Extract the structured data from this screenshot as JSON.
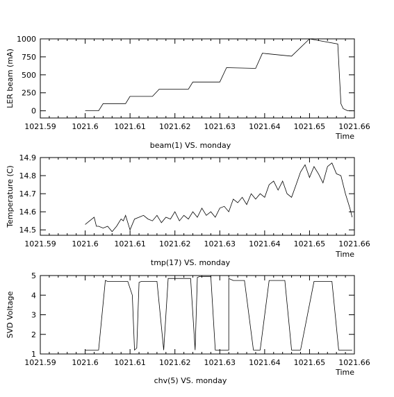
{
  "chart_data": [
    {
      "type": "line",
      "ylabel": "LER beam (mA)",
      "caption": "beam(1) VS. monday",
      "xlabel": "Time",
      "xlim": [
        1021.59,
        1021.66
      ],
      "ylim": [
        -100,
        1000
      ],
      "xticks": [
        "1021.59",
        "1021.6",
        "1021.61",
        "1021.62",
        "1021.63",
        "1021.64",
        "1021.65",
        "1021.66"
      ],
      "xtick_values": [
        1021.59,
        1021.6,
        1021.61,
        1021.62,
        1021.63,
        1021.64,
        1021.65,
        1021.66
      ],
      "yticks": [
        "0",
        "250",
        "500",
        "750",
        "1000"
      ],
      "ytick_values": [
        0,
        250,
        500,
        750,
        1000
      ],
      "x": [
        1021.6,
        1021.603,
        1021.604,
        1021.609,
        1021.61,
        1021.615,
        1021.6165,
        1021.623,
        1021.624,
        1021.63,
        1021.6315,
        1021.638,
        1021.6395,
        1021.646,
        1021.65,
        1021.6563,
        1021.657,
        1021.6575,
        1021.6585,
        1021.6595
      ],
      "series": [
        {
          "values": [
            0,
            0,
            100,
            100,
            200,
            200,
            300,
            300,
            400,
            400,
            600,
            590,
            800,
            760,
            1000,
            930,
            100,
            30,
            0,
            0
          ]
        }
      ]
    },
    {
      "type": "line",
      "ylabel": "Temperature (C)",
      "caption": "tmp(17) VS. monday",
      "xlabel": "Time",
      "xlim": [
        1021.59,
        1021.66
      ],
      "ylim": [
        14.47,
        14.9
      ],
      "xticks": [
        "1021.59",
        "1021.6",
        "1021.61",
        "1021.62",
        "1021.63",
        "1021.64",
        "1021.65",
        "1021.66"
      ],
      "xtick_values": [
        1021.59,
        1021.6,
        1021.61,
        1021.62,
        1021.63,
        1021.64,
        1021.65,
        1021.66
      ],
      "yticks": [
        "14.5",
        "14.6",
        "14.7",
        "14.8",
        "14.9"
      ],
      "ytick_values": [
        14.5,
        14.6,
        14.7,
        14.8,
        14.9
      ],
      "x": [
        1021.6,
        1021.601,
        1021.602,
        1021.6025,
        1021.603,
        1021.604,
        1021.605,
        1021.606,
        1021.607,
        1021.608,
        1021.6085,
        1021.609,
        1021.61,
        1021.611,
        1021.612,
        1021.613,
        1021.614,
        1021.615,
        1021.616,
        1021.617,
        1021.618,
        1021.619,
        1021.62,
        1021.621,
        1021.622,
        1021.623,
        1021.624,
        1021.625,
        1021.626,
        1021.627,
        1021.628,
        1021.629,
        1021.63,
        1021.631,
        1021.632,
        1021.633,
        1021.634,
        1021.635,
        1021.636,
        1021.637,
        1021.638,
        1021.639,
        1021.64,
        1021.641,
        1021.642,
        1021.643,
        1021.644,
        1021.645,
        1021.646,
        1021.647,
        1021.648,
        1021.649,
        1021.65,
        1021.651,
        1021.652,
        1021.653,
        1021.654,
        1021.655,
        1021.656,
        1021.657,
        1021.658,
        1021.659,
        1021.6595
      ],
      "series": [
        {
          "values": [
            14.53,
            14.55,
            14.57,
            14.52,
            14.52,
            14.51,
            14.52,
            14.49,
            14.52,
            14.56,
            14.55,
            14.58,
            14.5,
            14.56,
            14.57,
            14.58,
            14.56,
            14.55,
            14.58,
            14.54,
            14.57,
            14.56,
            14.6,
            14.55,
            14.58,
            14.56,
            14.6,
            14.57,
            14.62,
            14.58,
            14.6,
            14.57,
            14.62,
            14.63,
            14.6,
            14.67,
            14.65,
            14.68,
            14.64,
            14.7,
            14.67,
            14.7,
            14.68,
            14.75,
            14.77,
            14.72,
            14.77,
            14.7,
            14.68,
            14.75,
            14.82,
            14.86,
            14.79,
            14.85,
            14.81,
            14.76,
            14.85,
            14.87,
            14.81,
            14.8,
            14.7,
            14.62,
            14.57
          ]
        }
      ]
    },
    {
      "type": "line",
      "ylabel": "SVD Voltage",
      "caption": "chv(5) VS. monday",
      "xlabel": "Time",
      "xlim": [
        1021.59,
        1021.66
      ],
      "ylim": [
        1,
        5
      ],
      "xticks": [
        "1021.59",
        "1021.6",
        "1021.61",
        "1021.62",
        "1021.63",
        "1021.64",
        "1021.65",
        "1021.66"
      ],
      "xtick_values": [
        1021.59,
        1021.6,
        1021.61,
        1021.62,
        1021.63,
        1021.64,
        1021.65,
        1021.66
      ],
      "yticks": [
        "1",
        "2",
        "3",
        "4",
        "5"
      ],
      "ytick_values": [
        1,
        2,
        3,
        4,
        5
      ],
      "x": [
        1021.6,
        1021.603,
        1021.6045,
        1021.605,
        1021.6095,
        1021.6105,
        1021.611,
        1021.6115,
        1021.612,
        1021.6125,
        1021.616,
        1021.6175,
        1021.6185,
        1021.619,
        1021.6235,
        1021.6245,
        1021.625,
        1021.6255,
        1021.6275,
        1021.628,
        1021.629,
        1021.631,
        1021.632,
        1021.632,
        1021.633,
        1021.6355,
        1021.6375,
        1021.639,
        1021.641,
        1021.6445,
        1021.646,
        1021.648,
        1021.651,
        1021.652,
        1021.655,
        1021.6565,
        1021.6595
      ],
      "series": [
        {
          "values": [
            1.2,
            1.2,
            4.75,
            4.7,
            4.7,
            4.0,
            1.2,
            1.3,
            4.65,
            4.7,
            4.7,
            1.2,
            4.85,
            4.85,
            4.85,
            1.2,
            4.9,
            4.95,
            4.95,
            4.95,
            1.2,
            1.2,
            1.2,
            4.85,
            4.75,
            4.75,
            1.2,
            1.2,
            4.75,
            4.75,
            1.2,
            1.2,
            4.7,
            4.7,
            4.7,
            1.2,
            1.2
          ]
        }
      ]
    }
  ]
}
